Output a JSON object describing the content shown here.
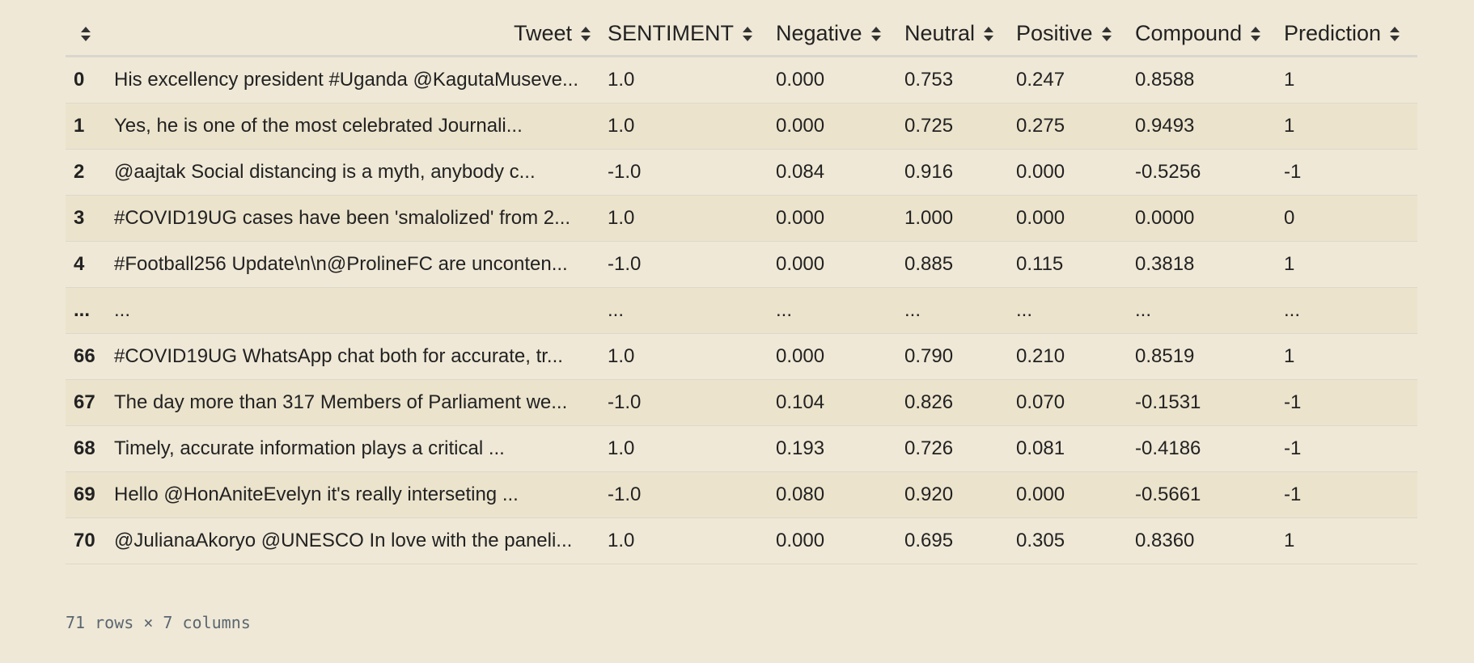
{
  "table": {
    "columns": [
      {
        "key": "index",
        "label": ""
      },
      {
        "key": "tweet",
        "label": "Tweet"
      },
      {
        "key": "sentiment",
        "label": "SENTIMENT"
      },
      {
        "key": "negative",
        "label": "Negative"
      },
      {
        "key": "neutral",
        "label": "Neutral"
      },
      {
        "key": "positive",
        "label": "Positive"
      },
      {
        "key": "compound",
        "label": "Compound"
      },
      {
        "key": "prediction",
        "label": "Prediction"
      }
    ],
    "rows": [
      {
        "index": "0",
        "tweet": "His excellency president #Uganda @KagutaMuseve...",
        "sentiment": "1.0",
        "negative": "0.000",
        "neutral": "0.753",
        "positive": "0.247",
        "compound": "0.8588",
        "prediction": "1"
      },
      {
        "index": "1",
        "tweet": "Yes, he is one of the most celebrated Journali...",
        "sentiment": "1.0",
        "negative": "0.000",
        "neutral": "0.725",
        "positive": "0.275",
        "compound": "0.9493",
        "prediction": "1"
      },
      {
        "index": "2",
        "tweet": "@aajtak Social distancing is a myth, anybody c...",
        "sentiment": "-1.0",
        "negative": "0.084",
        "neutral": "0.916",
        "positive": "0.000",
        "compound": "-0.5256",
        "prediction": "-1"
      },
      {
        "index": "3",
        "tweet": "#COVID19UG cases have been 'smalolized' from 2...",
        "sentiment": "1.0",
        "negative": "0.000",
        "neutral": "1.000",
        "positive": "0.000",
        "compound": "0.0000",
        "prediction": "0"
      },
      {
        "index": "4",
        "tweet": "#Football256 Update\\n\\n@ProlineFC are unconten...",
        "sentiment": "-1.0",
        "negative": "0.000",
        "neutral": "0.885",
        "positive": "0.115",
        "compound": "0.3818",
        "prediction": "1"
      },
      {
        "index": "...",
        "tweet": "...",
        "sentiment": "...",
        "negative": "...",
        "neutral": "...",
        "positive": "...",
        "compound": "...",
        "prediction": "..."
      },
      {
        "index": "66",
        "tweet": "#COVID19UG WhatsApp chat both for accurate, tr...",
        "sentiment": "1.0",
        "negative": "0.000",
        "neutral": "0.790",
        "positive": "0.210",
        "compound": "0.8519",
        "prediction": "1"
      },
      {
        "index": "67",
        "tweet": "The day more than 317 Members of Parliament we...",
        "sentiment": "-1.0",
        "negative": "0.104",
        "neutral": "0.826",
        "positive": "0.070",
        "compound": "-0.1531",
        "prediction": "-1"
      },
      {
        "index": "68",
        "tweet": "Timely, accurate information plays a critical ...",
        "sentiment": "1.0",
        "negative": "0.193",
        "neutral": "0.726",
        "positive": "0.081",
        "compound": "-0.4186",
        "prediction": "-1"
      },
      {
        "index": "69",
        "tweet": "Hello @HonAniteEvelyn it's really interseting ...",
        "sentiment": "-1.0",
        "negative": "0.080",
        "neutral": "0.920",
        "positive": "0.000",
        "compound": "-0.5661",
        "prediction": "-1"
      },
      {
        "index": "70",
        "tweet": "@JulianaAkoryo @UNESCO In love with the paneli...",
        "sentiment": "1.0",
        "negative": "0.000",
        "neutral": "0.695",
        "positive": "0.305",
        "compound": "0.8360",
        "prediction": "1"
      }
    ]
  },
  "footer": {
    "shape_text": "71 rows × 7 columns"
  },
  "icons": {
    "sort": "sort-arrows-icon"
  }
}
